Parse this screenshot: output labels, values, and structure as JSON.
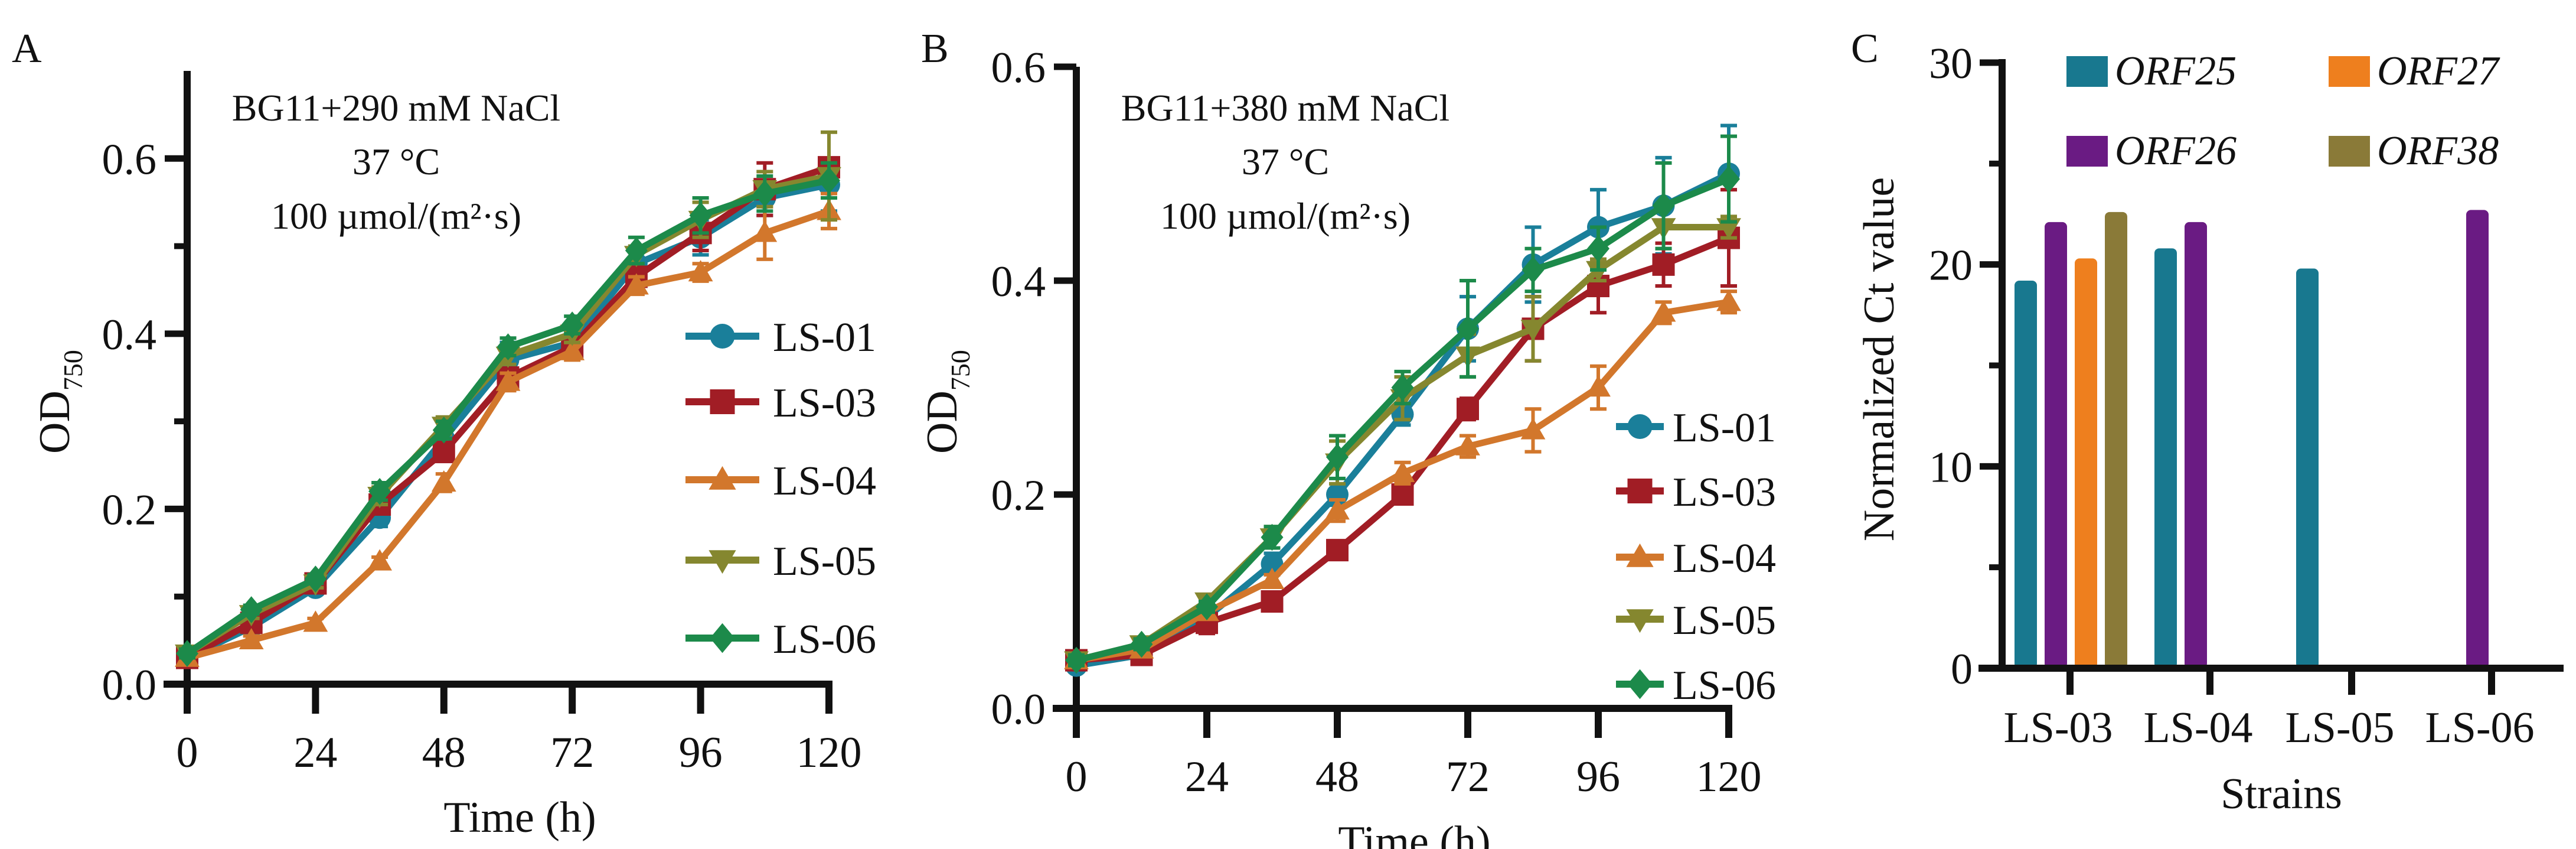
{
  "chart_data": [
    {
      "panel": "A",
      "type": "line",
      "annotation": [
        "BG11+290 mM NaCl",
        "37 °C",
        "100 µmol/(m²·s)"
      ],
      "xlabel": "Time (h)",
      "ylabel": "OD",
      "ylabel_sub": "750",
      "x": [
        0,
        12,
        24,
        36,
        48,
        60,
        72,
        84,
        96,
        108,
        120
      ],
      "xticks": [
        0,
        24,
        48,
        72,
        96,
        120
      ],
      "yticks": [
        "0.0",
        "0.2",
        "0.4",
        "0.6"
      ],
      "ylim": [
        0,
        0.7
      ],
      "legend": "right",
      "series": [
        {
          "name": "LS-01",
          "color": "#1a7f9a",
          "marker": "circle",
          "values": [
            0.03,
            0.065,
            0.11,
            0.19,
            0.28,
            0.37,
            0.39,
            0.48,
            0.51,
            0.555,
            0.57
          ],
          "err": [
            0.005,
            0.005,
            0.006,
            0.01,
            0.01,
            0.02,
            0.015,
            0.02,
            0.02,
            0.02,
            0.03
          ]
        },
        {
          "name": "LS-03",
          "color": "#a11d25",
          "marker": "square",
          "values": [
            0.03,
            0.07,
            0.115,
            0.205,
            0.265,
            0.35,
            0.385,
            0.465,
            0.515,
            0.565,
            0.59
          ],
          "err": [
            0.005,
            0.005,
            0.005,
            0.01,
            0.01,
            0.01,
            0.01,
            0.01,
            0.02,
            0.03,
            0.01
          ]
        },
        {
          "name": "LS-04",
          "color": "#d2772c",
          "marker": "triangle-up",
          "values": [
            0.03,
            0.05,
            0.07,
            0.14,
            0.23,
            0.345,
            0.38,
            0.455,
            0.47,
            0.515,
            0.54
          ],
          "err": [
            0.005,
            0.005,
            0.005,
            0.005,
            0.01,
            0.01,
            0.01,
            0.01,
            0.01,
            0.03,
            0.02
          ]
        },
        {
          "name": "LS-05",
          "color": "#85872f",
          "marker": "triangle-down",
          "values": [
            0.035,
            0.08,
            0.115,
            0.215,
            0.295,
            0.375,
            0.4,
            0.49,
            0.53,
            0.565,
            0.58
          ],
          "err": [
            0.005,
            0.005,
            0.005,
            0.01,
            0.01,
            0.01,
            0.01,
            0.01,
            0.02,
            0.02,
            0.05
          ]
        },
        {
          "name": "LS-06",
          "color": "#1c8a4a",
          "marker": "diamond",
          "values": [
            0.035,
            0.085,
            0.12,
            0.22,
            0.29,
            0.385,
            0.41,
            0.495,
            0.535,
            0.56,
            0.575
          ],
          "err": [
            0.005,
            0.005,
            0.005,
            0.01,
            0.01,
            0.01,
            0.01,
            0.015,
            0.02,
            0.02,
            0.02
          ]
        }
      ]
    },
    {
      "panel": "B",
      "type": "line",
      "annotation": [
        "BG11+380 mM NaCl",
        "37 °C",
        "100 µmol/(m²·s)"
      ],
      "xlabel": "Time (h)",
      "ylabel": "OD",
      "ylabel_sub": "750",
      "x": [
        0,
        12,
        24,
        36,
        48,
        60,
        72,
        84,
        96,
        108,
        120
      ],
      "xticks": [
        0,
        24,
        48,
        72,
        96,
        120
      ],
      "yticks": [
        "0.0",
        "0.2",
        "0.4",
        "0.6"
      ],
      "ylim": [
        0,
        0.6
      ],
      "legend": "bottom-right",
      "series": [
        {
          "name": "LS-01",
          "color": "#1a7f9a",
          "marker": "circle",
          "values": [
            0.04,
            0.05,
            0.085,
            0.135,
            0.2,
            0.275,
            0.355,
            0.415,
            0.45,
            0.47,
            0.5
          ],
          "err": [
            0.005,
            0.005,
            0.005,
            0.01,
            0.01,
            0.01,
            0.03,
            0.035,
            0.035,
            0.045,
            0.045
          ]
        },
        {
          "name": "LS-03",
          "color": "#a11d25",
          "marker": "square",
          "values": [
            0.045,
            0.05,
            0.08,
            0.1,
            0.148,
            0.2,
            0.28,
            0.355,
            0.395,
            0.415,
            0.44
          ],
          "err": [
            0.005,
            0.005,
            0.01,
            0.005,
            0.005,
            0.005,
            0.01,
            0.03,
            0.025,
            0.02,
            0.045
          ]
        },
        {
          "name": "LS-04",
          "color": "#d2772c",
          "marker": "triangle-up",
          "values": [
            0.045,
            0.055,
            0.09,
            0.12,
            0.185,
            0.22,
            0.245,
            0.26,
            0.3,
            0.37,
            0.38
          ],
          "err": [
            0.005,
            0.005,
            0.005,
            0.005,
            0.01,
            0.01,
            0.01,
            0.02,
            0.02,
            0.01,
            0.01
          ]
        },
        {
          "name": "LS-05",
          "color": "#85872f",
          "marker": "triangle-down",
          "values": [
            0.045,
            0.06,
            0.1,
            0.16,
            0.23,
            0.29,
            0.33,
            0.355,
            0.41,
            0.45,
            0.45
          ],
          "err": [
            0.005,
            0.005,
            0.005,
            0.01,
            0.02,
            0.02,
            0.02,
            0.03,
            0.01,
            0.02,
            0.01
          ]
        },
        {
          "name": "LS-06",
          "color": "#1c8a4a",
          "marker": "diamond",
          "values": [
            0.045,
            0.06,
            0.095,
            0.16,
            0.235,
            0.3,
            0.355,
            0.41,
            0.43,
            0.47,
            0.495
          ],
          "err": [
            0.005,
            0.005,
            0.005,
            0.01,
            0.02,
            0.015,
            0.045,
            0.02,
            0.02,
            0.04,
            0.04
          ]
        }
      ]
    },
    {
      "panel": "C",
      "type": "bar",
      "xlabel": "Strains",
      "ylabel": "Normalized Ct value",
      "categories": [
        "LS-03",
        "LS-04",
        "LS-05",
        "LS-06"
      ],
      "yticks": [
        "0",
        "10",
        "20",
        "30"
      ],
      "ylim": [
        0,
        30
      ],
      "legend": "top",
      "series": [
        {
          "name": "ORF25",
          "color": "#18788f",
          "values": [
            19.2,
            20.8,
            19.8,
            null
          ]
        },
        {
          "name": "ORF26",
          "color": "#6a1b83",
          "values": [
            22.1,
            22.1,
            null,
            22.7
          ]
        },
        {
          "name": "ORF27",
          "color": "#ee7f1e",
          "values": [
            20.3,
            null,
            null,
            null
          ]
        },
        {
          "name": "ORF38",
          "color": "#8a7a38",
          "values": [
            22.6,
            null,
            null,
            null
          ]
        }
      ]
    }
  ]
}
